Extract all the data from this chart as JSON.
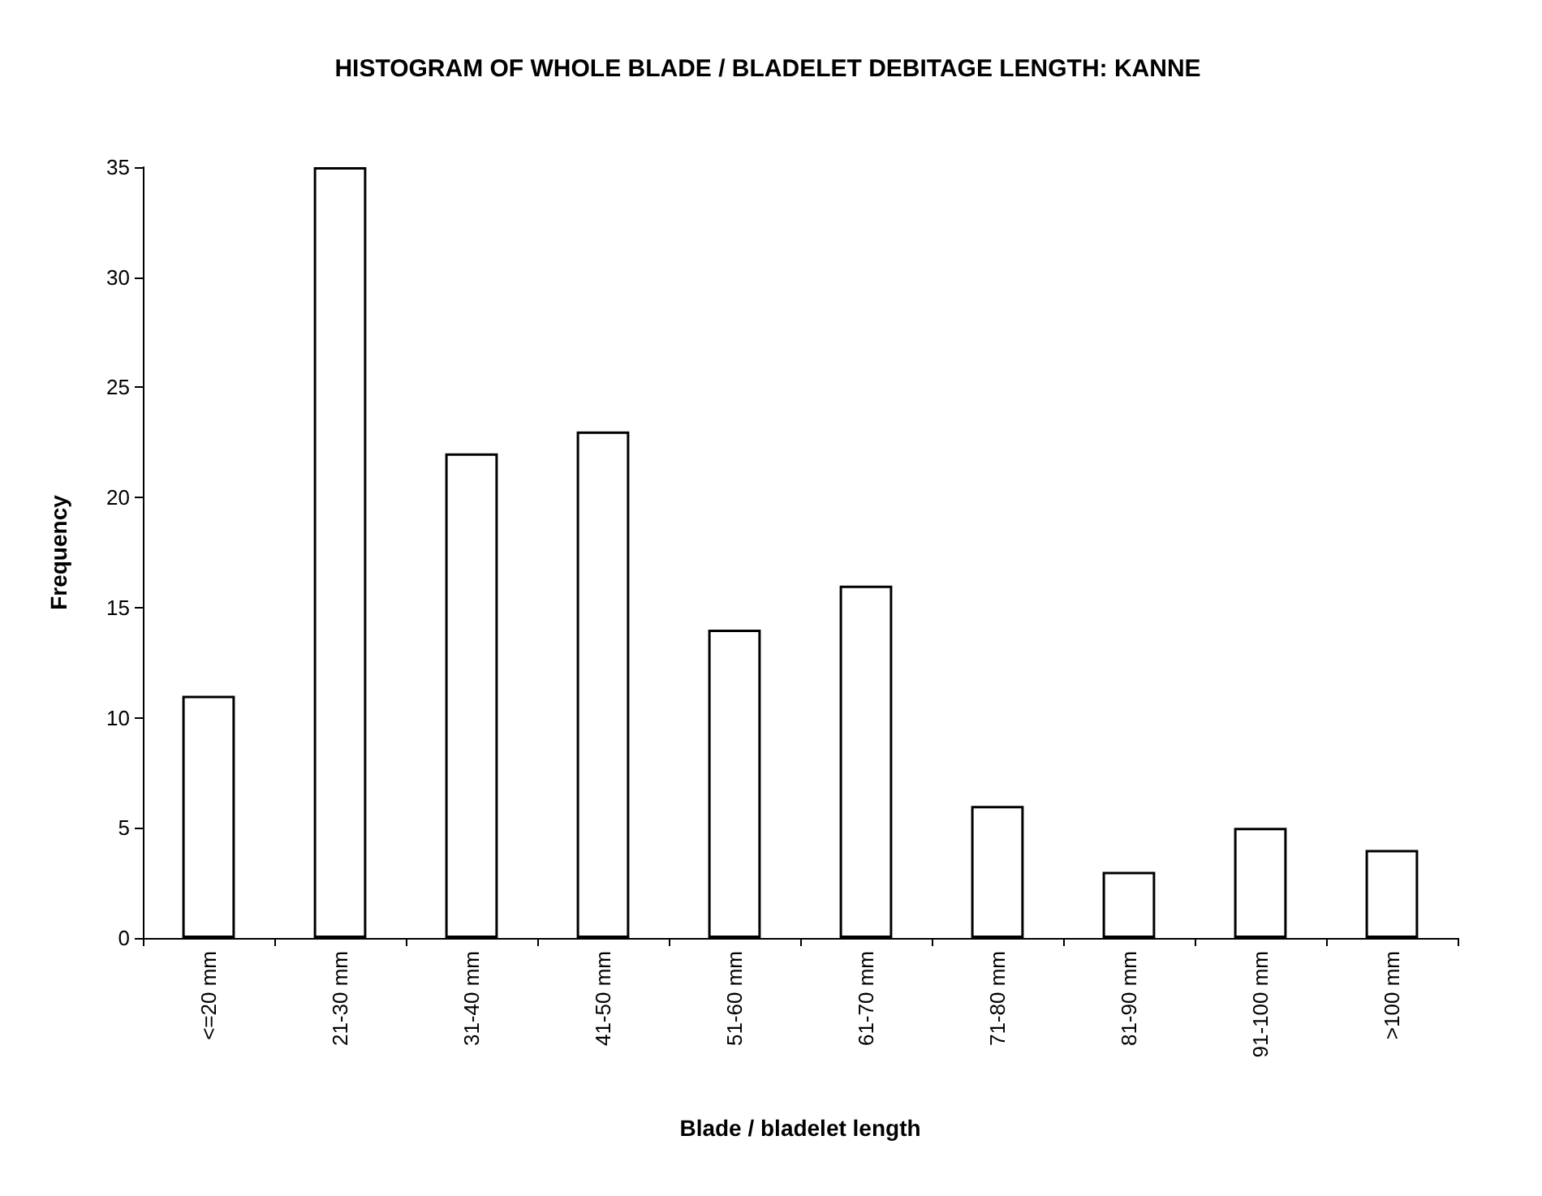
{
  "chart_data": {
    "type": "bar",
    "title": "HISTOGRAM OF WHOLE BLADE / BLADELET DEBITAGE LENGTH: KANNE",
    "xlabel": "Blade / bladelet length",
    "ylabel": "Frequency",
    "categories": [
      "<=20 mm",
      "21-30 mm",
      "31-40 mm",
      "41-50 mm",
      "51-60 mm",
      "61-70 mm",
      "71-80 mm",
      "81-90 mm",
      "91-100 mm",
      ">100 mm"
    ],
    "values": [
      11,
      35,
      22,
      23,
      14,
      16,
      6,
      3,
      5,
      4
    ],
    "color": "#ffffff",
    "ylim": [
      0,
      35
    ],
    "yticks": [
      0,
      5,
      10,
      15,
      20,
      25,
      30,
      35
    ],
    "grid": false
  }
}
